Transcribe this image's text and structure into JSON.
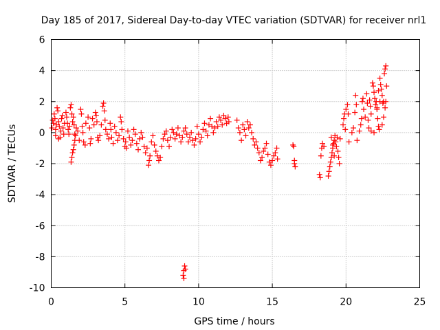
{
  "chart_data": {
    "type": "scatter",
    "title": "Day 185 of 2017, Sidereal Day-to-day VTEC variation (SDTVAR) for receiver nrl1",
    "xlabel": "GPS time / hours",
    "ylabel": "SDTVAR / TECUs",
    "xlim": [
      0,
      25
    ],
    "ylim": [
      -10,
      6
    ],
    "xticks": [
      0,
      5,
      10,
      15,
      20,
      25
    ],
    "yticks": [
      -10,
      -8,
      -6,
      -4,
      -2,
      0,
      2,
      4,
      6
    ],
    "grid": true,
    "marker": "plus",
    "color": "#ff0000",
    "series": [
      {
        "name": "SDTVAR",
        "points": [
          [
            0.05,
            0.3
          ],
          [
            0.1,
            0.8
          ],
          [
            0.15,
            0.6
          ],
          [
            0.2,
            1.2
          ],
          [
            0.25,
            0.9
          ],
          [
            0.3,
            0.2
          ],
          [
            0.35,
            0.5
          ],
          [
            0.4,
            1.6
          ],
          [
            0.45,
            1.4
          ],
          [
            0.5,
            0.7
          ],
          [
            0.55,
            0.4
          ],
          [
            0.6,
            -0.3
          ],
          [
            0.65,
            0.1
          ],
          [
            0.7,
            0.9
          ],
          [
            0.75,
            1.1
          ],
          [
            0.8,
            0.3
          ],
          [
            0.85,
            -0.1
          ],
          [
            0.9,
            0.6
          ],
          [
            0.3,
            -0.2
          ],
          [
            0.5,
            -0.4
          ],
          [
            1.0,
            1.3
          ],
          [
            1.05,
            1.0
          ],
          [
            1.1,
            0.6
          ],
          [
            1.15,
            0.2
          ],
          [
            1.2,
            -0.1
          ],
          [
            1.25,
            0.4
          ],
          [
            1.3,
            1.6
          ],
          [
            1.35,
            1.8
          ],
          [
            1.4,
            1.2
          ],
          [
            1.45,
            0.7
          ],
          [
            1.5,
            1.0
          ],
          [
            1.55,
            0.5
          ],
          [
            1.6,
            -0.1
          ],
          [
            1.35,
            -1.9
          ],
          [
            1.4,
            -1.6
          ],
          [
            1.45,
            -1.3
          ],
          [
            1.5,
            -1.1
          ],
          [
            1.55,
            -0.8
          ],
          [
            1.6,
            -0.5
          ],
          [
            1.65,
            -0.2
          ],
          [
            1.7,
            0.3
          ],
          [
            1.8,
            0.1
          ],
          [
            1.9,
            -0.5
          ],
          [
            2.0,
            1.5
          ],
          [
            2.05,
            1.2
          ],
          [
            2.1,
            0.4
          ],
          [
            2.15,
            0.0
          ],
          [
            2.2,
            -0.6
          ],
          [
            2.3,
            -0.8
          ],
          [
            2.35,
            0.6
          ],
          [
            2.5,
            1.0
          ],
          [
            2.6,
            0.3
          ],
          [
            2.65,
            -0.7
          ],
          [
            2.7,
            -0.4
          ],
          [
            2.8,
            0.9
          ],
          [
            2.9,
            0.5
          ],
          [
            3.0,
            1.3
          ],
          [
            3.05,
            1.1
          ],
          [
            3.1,
            0.7
          ],
          [
            3.15,
            -0.3
          ],
          [
            3.2,
            -0.5
          ],
          [
            3.3,
            -0.2
          ],
          [
            3.4,
            0.5
          ],
          [
            3.5,
            1.7
          ],
          [
            3.55,
            1.9
          ],
          [
            3.6,
            1.4
          ],
          [
            3.65,
            0.8
          ],
          [
            3.7,
            0.2
          ],
          [
            3.8,
            -0.1
          ],
          [
            3.9,
            -0.4
          ],
          [
            4.0,
            0.6
          ],
          [
            4.05,
            0.2
          ],
          [
            4.1,
            -0.3
          ],
          [
            4.2,
            -0.7
          ],
          [
            4.3,
            0.4
          ],
          [
            4.4,
            0.0
          ],
          [
            4.5,
            -0.5
          ],
          [
            4.6,
            -0.2
          ],
          [
            4.7,
            1.0
          ],
          [
            4.75,
            0.7
          ],
          [
            4.8,
            0.2
          ],
          [
            4.9,
            -0.4
          ],
          [
            5.0,
            -0.9
          ],
          [
            5.05,
            -0.6
          ],
          [
            5.1,
            -1.0
          ],
          [
            5.2,
            0.1
          ],
          [
            5.3,
            -0.3
          ],
          [
            5.4,
            -0.8
          ],
          [
            5.5,
            -0.5
          ],
          [
            5.6,
            0.2
          ],
          [
            5.7,
            -0.1
          ],
          [
            5.8,
            -0.7
          ],
          [
            5.9,
            -1.1
          ],
          [
            6.0,
            -0.4
          ],
          [
            6.1,
            0.0
          ],
          [
            6.2,
            -0.3
          ],
          [
            6.3,
            -0.9
          ],
          [
            6.4,
            -1.3
          ],
          [
            6.5,
            -1.0
          ],
          [
            6.6,
            -2.1
          ],
          [
            6.65,
            -1.8
          ],
          [
            6.7,
            -1.5
          ],
          [
            6.8,
            -0.6
          ],
          [
            6.9,
            -0.2
          ],
          [
            7.0,
            -0.8
          ],
          [
            7.1,
            -1.2
          ],
          [
            7.2,
            -1.5
          ],
          [
            7.3,
            -1.8
          ],
          [
            7.4,
            -1.6
          ],
          [
            7.5,
            -0.9
          ],
          [
            7.6,
            -0.4
          ],
          [
            7.7,
            -0.1
          ],
          [
            7.8,
            0.1
          ],
          [
            7.9,
            -0.5
          ],
          [
            8.0,
            -0.9
          ],
          [
            8.1,
            -0.3
          ],
          [
            8.2,
            0.2
          ],
          [
            8.3,
            0.0
          ],
          [
            8.4,
            -0.4
          ],
          [
            8.5,
            -0.1
          ],
          [
            8.6,
            0.3
          ],
          [
            8.7,
            -0.2
          ],
          [
            8.8,
            -0.6
          ],
          [
            8.9,
            -0.3
          ],
          [
            9.0,
            0.1
          ],
          [
            9.1,
            0.3
          ],
          [
            9.2,
            -0.1
          ],
          [
            9.3,
            -0.6
          ],
          [
            9.4,
            -0.3
          ],
          [
            9.5,
            0.0
          ],
          [
            8.95,
            -9.2
          ],
          [
            9.0,
            -8.9
          ],
          [
            9.05,
            -8.6
          ],
          [
            9.1,
            -8.8
          ],
          [
            9.0,
            -9.4
          ],
          [
            9.6,
            -0.5
          ],
          [
            9.7,
            -0.8
          ],
          [
            9.8,
            -0.4
          ],
          [
            9.9,
            0.4
          ],
          [
            10.0,
            -0.1
          ],
          [
            10.1,
            -0.6
          ],
          [
            10.2,
            -0.3
          ],
          [
            10.3,
            0.2
          ],
          [
            10.4,
            0.6
          ],
          [
            10.5,
            0.1
          ],
          [
            10.6,
            -0.2
          ],
          [
            10.7,
            0.5
          ],
          [
            10.8,
            0.9
          ],
          [
            10.9,
            0.4
          ],
          [
            11.0,
            0.0
          ],
          [
            11.1,
            0.3
          ],
          [
            11.2,
            0.7
          ],
          [
            11.3,
            0.4
          ],
          [
            11.4,
            1.0
          ],
          [
            11.5,
            0.8
          ],
          [
            11.6,
            0.5
          ],
          [
            11.7,
            1.1
          ],
          [
            11.8,
            0.9
          ],
          [
            11.9,
            0.6
          ],
          [
            12.0,
            1.0
          ],
          [
            12.05,
            0.7
          ],
          [
            12.6,
            0.8
          ],
          [
            12.7,
            0.3
          ],
          [
            12.8,
            0.0
          ],
          [
            12.9,
            -0.5
          ],
          [
            13.0,
            0.5
          ],
          [
            13.1,
            0.2
          ],
          [
            13.2,
            -0.2
          ],
          [
            13.3,
            0.7
          ],
          [
            13.4,
            0.3
          ],
          [
            13.5,
            0.5
          ],
          [
            13.6,
            0.0
          ],
          [
            13.7,
            -0.4
          ],
          [
            13.8,
            -0.8
          ],
          [
            13.9,
            -0.6
          ],
          [
            14.0,
            -1.0
          ],
          [
            14.1,
            -1.3
          ],
          [
            14.2,
            -1.8
          ],
          [
            14.3,
            -1.6
          ],
          [
            14.4,
            -1.2
          ],
          [
            14.5,
            -1.0
          ],
          [
            14.6,
            -0.7
          ],
          [
            14.7,
            -1.4
          ],
          [
            14.8,
            -1.9
          ],
          [
            14.9,
            -2.1
          ],
          [
            15.0,
            -1.8
          ],
          [
            15.1,
            -1.5
          ],
          [
            15.2,
            -1.3
          ],
          [
            15.3,
            -1.0
          ],
          [
            15.35,
            -1.7
          ],
          [
            16.4,
            -0.8
          ],
          [
            16.45,
            -0.9
          ],
          [
            16.5,
            -1.8
          ],
          [
            16.55,
            -2.2
          ],
          [
            16.5,
            -2.0
          ],
          [
            18.2,
            -2.7
          ],
          [
            18.25,
            -2.9
          ],
          [
            18.3,
            -1.5
          ],
          [
            18.35,
            -1.0
          ],
          [
            18.4,
            -0.7
          ],
          [
            18.5,
            -0.9
          ],
          [
            18.8,
            -2.8
          ],
          [
            18.85,
            -2.5
          ],
          [
            18.9,
            -2.2
          ],
          [
            18.95,
            -1.9
          ],
          [
            19.0,
            -1.6
          ],
          [
            19.05,
            -1.3
          ],
          [
            19.1,
            -1.0
          ],
          [
            19.15,
            -0.7
          ],
          [
            19.2,
            -0.5
          ],
          [
            19.25,
            -0.2
          ],
          [
            19.3,
            -0.6
          ],
          [
            19.35,
            -0.9
          ],
          [
            19.4,
            -0.3
          ],
          [
            19.45,
            -1.2
          ],
          [
            19.5,
            -1.6
          ],
          [
            19.55,
            -2.0
          ],
          [
            19.6,
            -0.4
          ],
          [
            19.0,
            -0.3
          ],
          [
            19.1,
            -0.8
          ],
          [
            19.2,
            -1.5
          ],
          [
            19.8,
            0.5
          ],
          [
            19.85,
            0.9
          ],
          [
            19.9,
            1.2
          ],
          [
            19.95,
            0.2
          ],
          [
            20.0,
            1.5
          ],
          [
            20.1,
            1.8
          ],
          [
            20.15,
            1.2
          ],
          [
            20.2,
            -0.6
          ],
          [
            20.4,
            0.0
          ],
          [
            20.5,
            0.3
          ],
          [
            20.6,
            1.3
          ],
          [
            20.65,
            2.4
          ],
          [
            20.7,
            1.8
          ],
          [
            20.75,
            -0.5
          ],
          [
            20.9,
            0.1
          ],
          [
            21.0,
            0.5
          ],
          [
            21.05,
            0.9
          ],
          [
            21.1,
            2.0
          ],
          [
            21.15,
            2.2
          ],
          [
            21.2,
            1.5
          ],
          [
            21.3,
            1.0
          ],
          [
            21.4,
            2.5
          ],
          [
            21.45,
            1.9
          ],
          [
            21.5,
            0.8
          ],
          [
            21.55,
            0.3
          ],
          [
            21.6,
            2.1
          ],
          [
            21.65,
            1.7
          ],
          [
            21.7,
            1.2
          ],
          [
            21.8,
            3.2
          ],
          [
            21.85,
            3.0
          ],
          [
            21.9,
            2.6
          ],
          [
            21.95,
            2.2
          ],
          [
            22.0,
            1.8
          ],
          [
            22.05,
            2.0
          ],
          [
            22.1,
            1.6
          ],
          [
            22.15,
            0.9
          ],
          [
            22.2,
            0.4
          ],
          [
            22.25,
            0.2
          ],
          [
            22.3,
            3.5
          ],
          [
            22.35,
            3.1
          ],
          [
            22.4,
            2.8
          ],
          [
            22.45,
            2.4
          ],
          [
            22.5,
            1.9
          ],
          [
            22.55,
            2.0
          ],
          [
            22.6,
            3.8
          ],
          [
            22.65,
            4.1
          ],
          [
            22.7,
            4.3
          ],
          [
            22.75,
            3.0
          ],
          [
            22.2,
            2.7
          ],
          [
            22.3,
            2.0
          ],
          [
            22.45,
            0.5
          ],
          [
            22.55,
            1.0
          ],
          [
            22.65,
            1.6
          ],
          [
            22.7,
            2.0
          ],
          [
            22.1,
            1.5
          ],
          [
            21.9,
            0.0
          ],
          [
            21.7,
            0.1
          ]
        ]
      }
    ]
  }
}
